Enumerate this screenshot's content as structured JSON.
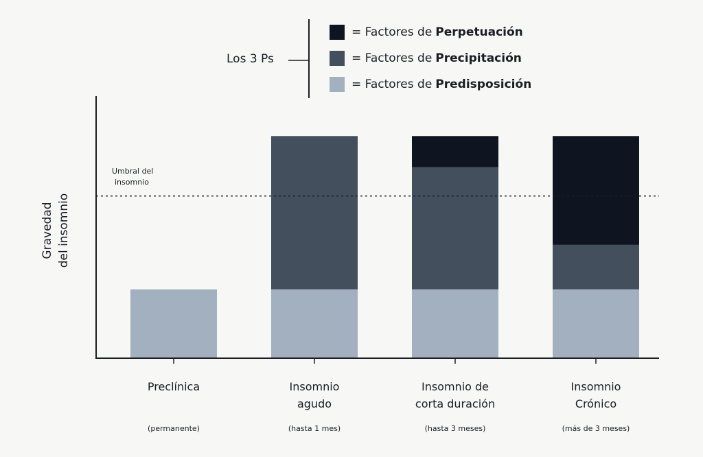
{
  "chart_data": {
    "type": "bar",
    "stacked": true,
    "title": "",
    "ylabel": "Gravedad del insomnio",
    "ylabel_lines": [
      "Gravedad",
      "del insomnio"
    ],
    "xlabel": "",
    "ylim": [
      0,
      118
    ],
    "y_tick_labels": false,
    "grid": false,
    "categories": [
      {
        "lines": [
          "Preclínica"
        ],
        "note": "(permanente)"
      },
      {
        "lines": [
          "Insomnio",
          "agudo"
        ],
        "note": "(hasta 1 mes)"
      },
      {
        "lines": [
          "Insomnio de",
          "corta duración"
        ],
        "note": "(hasta 3 meses)"
      },
      {
        "lines": [
          "Insomnio",
          "Crónico"
        ],
        "note": "(más de 3 meses)"
      }
    ],
    "series": [
      {
        "name": "Predisposición",
        "color": "#a3b0bf",
        "values": [
          31,
          31,
          31,
          31
        ]
      },
      {
        "name": "Precipitación",
        "color": "#434f5d",
        "values": [
          0,
          69,
          55,
          20
        ]
      },
      {
        "name": "Perpetuación",
        "color": "#0e1420",
        "values": [
          0,
          0,
          14,
          49
        ]
      }
    ],
    "threshold": {
      "value": 73,
      "label_lines": [
        "Umbral del",
        "insomnio"
      ],
      "style": "dotted"
    },
    "legend": {
      "placement": "top",
      "group_label": "Los 3 Ps",
      "prefix": "= Factores de",
      "entries": [
        "Perpetuación",
        "Precipitación",
        "Predisposición"
      ],
      "colors": [
        "#0e1420",
        "#434f5d",
        "#a3b0bf"
      ]
    }
  }
}
